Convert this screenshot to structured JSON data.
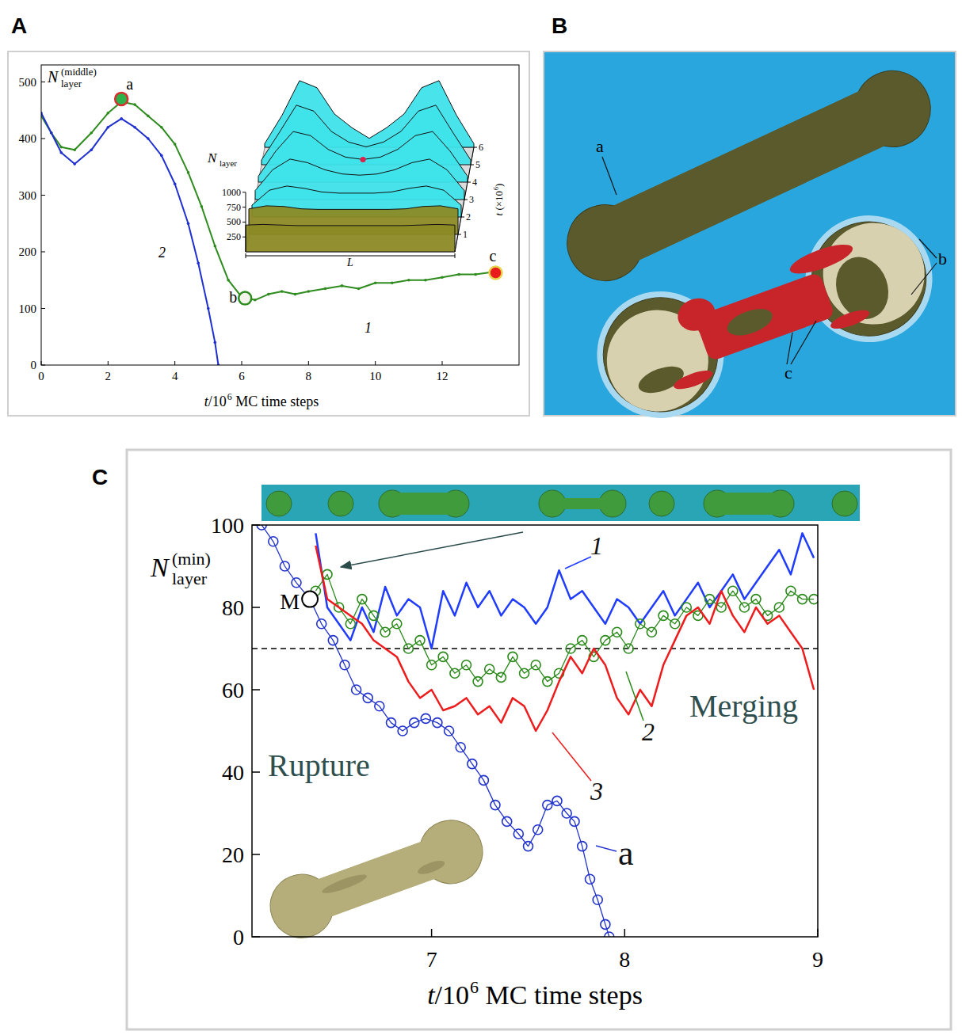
{
  "chart_data": [
    {
      "letter": "A",
      "type": "line",
      "x_label": {
        "pre": "t/10",
        "sup": "6",
        "post": " MC time steps"
      },
      "y_label": {
        "main": "N",
        "sub": "layer",
        "sup": "(middle)"
      },
      "xlim": [
        0,
        14.3
      ],
      "ylim": [
        0,
        530
      ],
      "xticks": [
        0,
        2,
        4,
        6,
        8,
        10,
        12
      ],
      "yticks": [
        0,
        100,
        200,
        300,
        400,
        500
      ],
      "series": [
        {
          "name": "1",
          "color": "#2e8b1e",
          "marker": "dot",
          "line_style": "solid",
          "x": [
            0,
            0.3,
            0.6,
            1.0,
            1.5,
            2.0,
            2.4,
            2.8,
            3.2,
            3.6,
            4.0,
            4.4,
            4.8,
            5.2,
            5.6,
            6.0,
            6.4,
            6.8,
            7.2,
            7.6,
            8.0,
            8.5,
            9.0,
            9.5,
            10.0,
            10.5,
            11.0,
            11.5,
            12.0,
            12.5,
            13.0,
            13.6
          ],
          "values": [
            440,
            410,
            385,
            380,
            410,
            445,
            465,
            460,
            440,
            420,
            390,
            340,
            280,
            210,
            150,
            120,
            115,
            125,
            130,
            125,
            130,
            135,
            140,
            135,
            145,
            145,
            150,
            150,
            155,
            160,
            160,
            165
          ]
        },
        {
          "name": "2",
          "color": "#1f2fd0",
          "marker": "dot",
          "line_style": "solid",
          "x": [
            0,
            0.3,
            0.6,
            1.0,
            1.5,
            2.0,
            2.4,
            2.8,
            3.2,
            3.6,
            4.0,
            4.4,
            4.7,
            5.0,
            5.2,
            5.3
          ],
          "values": [
            445,
            410,
            375,
            355,
            380,
            420,
            435,
            420,
            400,
            370,
            320,
            250,
            180,
            100,
            40,
            0
          ]
        }
      ],
      "points": [
        {
          "label": "a",
          "x": 2.4,
          "y": 470,
          "color": "#2db34a"
        },
        {
          "label": "b",
          "x": 6.1,
          "y": 118,
          "color": "#f4f4ec"
        },
        {
          "label": "c",
          "x": 13.6,
          "y": 163,
          "color": "#e81c1c"
        }
      ],
      "inset": {
        "type": "surface",
        "z_label": {
          "main": "N",
          "sub": "layer"
        },
        "t_label": {
          "pre": "t (×10",
          "sup": "6",
          "post": ")"
        },
        "x_label": "L",
        "zlim": [
          0,
          1250
        ],
        "zticks": [
          250,
          500,
          750,
          1000
        ],
        "tlim": [
          0,
          6
        ],
        "tticks": [
          1,
          2,
          3,
          4,
          5,
          6
        ],
        "t": [
          0,
          1,
          2,
          3,
          4,
          5,
          6
        ],
        "profiles": [
          [
            450,
            460,
            450,
            440,
            440,
            440,
            440,
            440,
            440,
            440,
            450,
            460,
            450
          ],
          [
            430,
            480,
            470,
            430,
            420,
            420,
            420,
            420,
            420,
            430,
            470,
            480,
            430
          ],
          [
            200,
            450,
            520,
            480,
            420,
            400,
            400,
            400,
            420,
            480,
            520,
            450,
            200
          ],
          [
            150,
            500,
            680,
            620,
            500,
            430,
            410,
            430,
            500,
            620,
            680,
            500,
            150
          ],
          [
            100,
            520,
            850,
            780,
            550,
            420,
            380,
            420,
            550,
            780,
            850,
            520,
            100
          ],
          [
            80,
            530,
            1000,
            900,
            560,
            380,
            300,
            380,
            560,
            900,
            1000,
            530,
            80
          ],
          [
            60,
            540,
            1120,
            1000,
            560,
            330,
            150,
            330,
            560,
            1000,
            1120,
            540,
            60
          ]
        ],
        "colors": [
          "#8c8a25",
          "#8c8a25",
          "#3fe3ea",
          "#3fe3ea",
          "#3fe3ea",
          "#3fe3ea",
          "#3fe3ea"
        ],
        "marked_point": {
          "t": 4,
          "value": 380
        }
      }
    },
    {
      "letter": "C",
      "type": "line",
      "x_label": {
        "pre": "t/10",
        "sup": "6",
        "post": " MC time steps"
      },
      "y_label": {
        "main": "N",
        "sub": "layer",
        "sup": "(min)"
      },
      "xlim": [
        6.07,
        9.0
      ],
      "ylim": [
        0,
        100
      ],
      "xticks": [
        7,
        8,
        9
      ],
      "yticks": [
        0,
        20,
        40,
        60,
        80,
        100
      ],
      "reference_line": 70,
      "series": [
        {
          "name": "1",
          "color": "#1f3cff",
          "marker": "none",
          "line_style": "solid",
          "x": [
            6.4,
            6.46,
            6.52,
            6.58,
            6.64,
            6.7,
            6.76,
            6.82,
            6.88,
            6.94,
            7.0,
            7.06,
            7.12,
            7.18,
            7.24,
            7.3,
            7.36,
            7.42,
            7.48,
            7.54,
            7.6,
            7.66,
            7.72,
            7.78,
            7.84,
            7.9,
            7.96,
            8.02,
            8.08,
            8.14,
            8.2,
            8.26,
            8.32,
            8.38,
            8.44,
            8.5,
            8.56,
            8.62,
            8.68,
            8.74,
            8.8,
            8.86,
            8.92,
            8.98
          ],
          "values": [
            98,
            80,
            76,
            72,
            80,
            74,
            85,
            78,
            82,
            80,
            70,
            84,
            78,
            86,
            80,
            84,
            78,
            82,
            80,
            76,
            80,
            89,
            82,
            84,
            80,
            76,
            82,
            80,
            76,
            80,
            84,
            78,
            82,
            86,
            80,
            84,
            88,
            82,
            86,
            90,
            94,
            88,
            98,
            92
          ]
        },
        {
          "name": "2",
          "color": "#2a8a1a",
          "marker": "open-circle",
          "line_style": "solid",
          "x": [
            6.4,
            6.46,
            6.52,
            6.58,
            6.64,
            6.7,
            6.76,
            6.82,
            6.88,
            6.94,
            7.0,
            7.06,
            7.12,
            7.18,
            7.24,
            7.3,
            7.36,
            7.42,
            7.48,
            7.54,
            7.6,
            7.66,
            7.72,
            7.78,
            7.84,
            7.9,
            7.96,
            8.02,
            8.08,
            8.14,
            8.2,
            8.26,
            8.32,
            8.38,
            8.44,
            8.5,
            8.56,
            8.62,
            8.68,
            8.74,
            8.8,
            8.86,
            8.92,
            8.98
          ],
          "values": [
            84,
            88,
            80,
            76,
            82,
            78,
            74,
            76,
            70,
            72,
            66,
            68,
            64,
            66,
            62,
            65,
            63,
            68,
            64,
            66,
            62,
            64,
            70,
            72,
            68,
            72,
            74,
            70,
            76,
            74,
            78,
            76,
            80,
            78,
            82,
            80,
            84,
            80,
            82,
            78,
            80,
            84,
            82,
            82
          ]
        },
        {
          "name": "3",
          "color": "#ee1c1c",
          "marker": "none",
          "line_style": "solid",
          "x": [
            6.4,
            6.46,
            6.52,
            6.58,
            6.64,
            6.7,
            6.76,
            6.82,
            6.88,
            6.94,
            7.0,
            7.06,
            7.12,
            7.18,
            7.24,
            7.3,
            7.36,
            7.42,
            7.48,
            7.54,
            7.6,
            7.66,
            7.72,
            7.78,
            7.84,
            7.9,
            7.96,
            8.02,
            8.08,
            8.14,
            8.2,
            8.26,
            8.32,
            8.38,
            8.44,
            8.5,
            8.56,
            8.62,
            8.68,
            8.74,
            8.8,
            8.86,
            8.92,
            8.98
          ],
          "values": [
            95,
            82,
            80,
            78,
            76,
            72,
            70,
            68,
            62,
            58,
            60,
            55,
            56,
            58,
            54,
            56,
            52,
            58,
            56,
            50,
            55,
            62,
            68,
            64,
            70,
            66,
            58,
            54,
            60,
            56,
            66,
            72,
            78,
            80,
            76,
            84,
            78,
            74,
            80,
            76,
            78,
            74,
            70,
            60
          ]
        },
        {
          "name": "a",
          "color": "#2233cc",
          "marker": "open-circle",
          "line_style": "solid",
          "x": [
            6.12,
            6.18,
            6.24,
            6.3,
            6.37,
            6.43,
            6.49,
            6.55,
            6.61,
            6.67,
            6.73,
            6.79,
            6.85,
            6.91,
            6.97,
            7.03,
            7.09,
            7.15,
            7.21,
            7.27,
            7.33,
            7.39,
            7.45,
            7.5,
            7.55,
            7.6,
            7.65,
            7.7,
            7.74,
            7.78,
            7.82,
            7.86,
            7.9,
            7.92
          ],
          "values": [
            100,
            96,
            90,
            86,
            82,
            76,
            72,
            66,
            60,
            58,
            56,
            52,
            50,
            52,
            53,
            52,
            50,
            46,
            42,
            38,
            32,
            28,
            25,
            22,
            26,
            32,
            33,
            30,
            28,
            22,
            14,
            9,
            3,
            0
          ]
        }
      ],
      "points": [
        {
          "label": "M",
          "x": 6.37,
          "y": 82,
          "color": "#ffffff"
        }
      ],
      "annotations": [
        "Rupture",
        "Merging"
      ]
    }
  ],
  "image": {
    "letter": "B",
    "labels": [
      "a",
      "b",
      "c"
    ]
  }
}
